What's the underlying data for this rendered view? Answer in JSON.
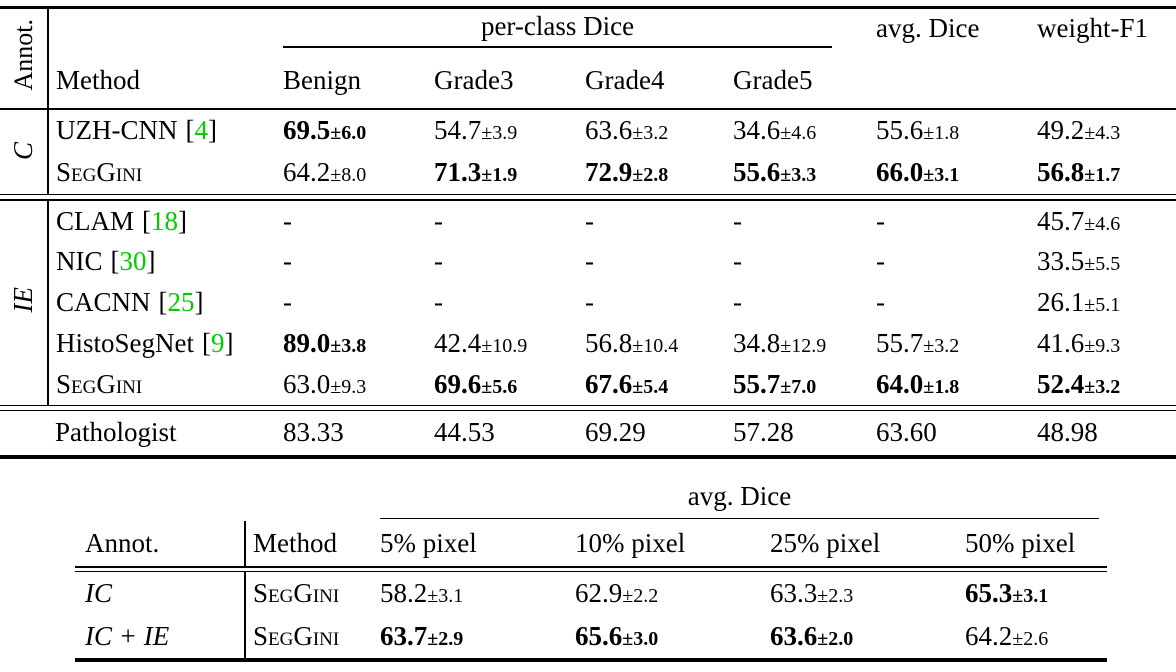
{
  "colors": {
    "citation_green": "#00cc00",
    "text": "#000000",
    "background": "#ffffff"
  },
  "table1": {
    "annot_header": "Annot.",
    "method_header": "Method",
    "per_class_header": "per-class Dice",
    "class_headers": [
      "Benign",
      "Grade3",
      "Grade4",
      "Grade5"
    ],
    "avg_header": "avg. Dice",
    "weight_f1_header": "weight-F1",
    "groups": [
      {
        "annot_label": "C",
        "rows": [
          {
            "method": "UZH-CNN",
            "citation": "4",
            "cells": [
              {
                "v": "69.5",
                "s": "6.0",
                "b": true
              },
              {
                "v": "54.7",
                "s": "3.9"
              },
              {
                "v": "63.6",
                "s": "3.2"
              },
              {
                "v": "34.6",
                "s": "4.6"
              },
              {
                "v": "55.6",
                "s": "1.8"
              },
              {
                "v": "49.2",
                "s": "4.3"
              }
            ]
          },
          {
            "method": "SegGini",
            "cells": [
              {
                "v": "64.2",
                "s": "8.0"
              },
              {
                "v": "71.3",
                "s": "1.9",
                "b": true
              },
              {
                "v": "72.9",
                "s": "2.8",
                "b": true
              },
              {
                "v": "55.6",
                "s": "3.3",
                "b": true
              },
              {
                "v": "66.0",
                "s": "3.1",
                "b": true
              },
              {
                "v": "56.8",
                "s": "1.7",
                "b": true
              }
            ]
          }
        ]
      },
      {
        "annot_label": "IE",
        "rows": [
          {
            "method": "CLAM",
            "citation": "18",
            "cells": [
              {
                "v": "-"
              },
              {
                "v": "-"
              },
              {
                "v": "-"
              },
              {
                "v": "-"
              },
              {
                "v": "-"
              },
              {
                "v": "45.7",
                "s": "4.6"
              }
            ]
          },
          {
            "method": "NIC",
            "citation": "30",
            "cells": [
              {
                "v": "-"
              },
              {
                "v": "-"
              },
              {
                "v": "-"
              },
              {
                "v": "-"
              },
              {
                "v": "-"
              },
              {
                "v": "33.5",
                "s": "5.5"
              }
            ]
          },
          {
            "method": "CACNN",
            "citation": "25",
            "cells": [
              {
                "v": "-"
              },
              {
                "v": "-"
              },
              {
                "v": "-"
              },
              {
                "v": "-"
              },
              {
                "v": "-"
              },
              {
                "v": "26.1",
                "s": "5.1"
              }
            ]
          },
          {
            "method": "HistoSegNet",
            "citation": "9",
            "cells": [
              {
                "v": "89.0",
                "s": "3.8",
                "b": true
              },
              {
                "v": "42.4",
                "s": "10.9"
              },
              {
                "v": "56.8",
                "s": "10.4"
              },
              {
                "v": "34.8",
                "s": "12.9"
              },
              {
                "v": "55.7",
                "s": "3.2"
              },
              {
                "v": "41.6",
                "s": "9.3"
              }
            ]
          },
          {
            "method": "SegGini",
            "cells": [
              {
                "v": "63.0",
                "s": "9.3"
              },
              {
                "v": "69.6",
                "s": "5.6",
                "b": true
              },
              {
                "v": "67.6",
                "s": "5.4",
                "b": true
              },
              {
                "v": "55.7",
                "s": "7.0",
                "b": true
              },
              {
                "v": "64.0",
                "s": "1.8",
                "b": true
              },
              {
                "v": "52.4",
                "s": "3.2",
                "b": true
              }
            ]
          }
        ]
      }
    ],
    "pathologist": {
      "label": "Pathologist",
      "values": [
        "83.33",
        "44.53",
        "69.29",
        "57.28",
        "63.60",
        "48.98"
      ]
    }
  },
  "table2": {
    "span_header": "avg. Dice",
    "annot_header": "Annot.",
    "method_header": "Method",
    "col_headers": [
      "5% pixel",
      "10% pixel",
      "25% pixel",
      "50% pixel"
    ],
    "rows": [
      {
        "annot": "IC",
        "method": "SegGini",
        "cells": [
          {
            "v": "58.2",
            "s": "3.1"
          },
          {
            "v": "62.9",
            "s": "2.2"
          },
          {
            "v": "63.3",
            "s": "2.3"
          },
          {
            "v": "65.3",
            "s": "3.1",
            "b": true
          }
        ]
      },
      {
        "annot": "IC + IE",
        "method": "SegGini",
        "cells": [
          {
            "v": "63.7",
            "s": "2.9",
            "b": true
          },
          {
            "v": "65.6",
            "s": "3.0",
            "b": true
          },
          {
            "v": "63.6",
            "s": "2.0",
            "b": true
          },
          {
            "v": "64.2",
            "s": "2.6"
          }
        ]
      }
    ]
  }
}
